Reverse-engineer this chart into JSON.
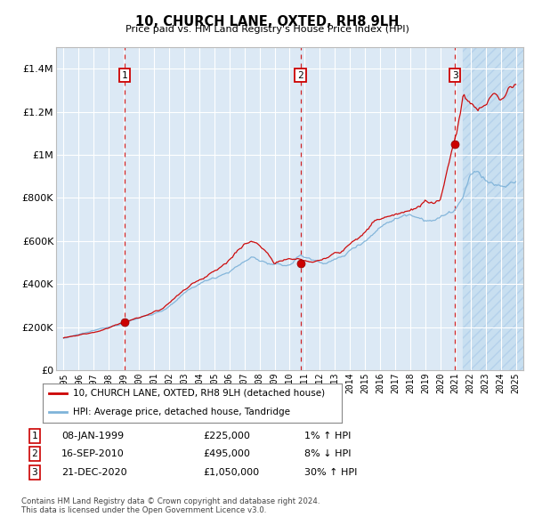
{
  "title": "10, CHURCH LANE, OXTED, RH8 9LH",
  "subtitle": "Price paid vs. HM Land Registry's House Price Index (HPI)",
  "xlim": [
    1994.5,
    2025.5
  ],
  "ylim": [
    0,
    1500000
  ],
  "yticks": [
    0,
    200000,
    400000,
    600000,
    800000,
    1000000,
    1200000,
    1400000
  ],
  "ytick_labels": [
    "£0",
    "£200K",
    "£400K",
    "£600K",
    "£800K",
    "£1M",
    "£1.2M",
    "£1.4M"
  ],
  "xtick_years": [
    1995,
    1996,
    1997,
    1998,
    1999,
    2000,
    2001,
    2002,
    2003,
    2004,
    2005,
    2006,
    2007,
    2008,
    2009,
    2010,
    2011,
    2012,
    2013,
    2014,
    2015,
    2016,
    2017,
    2018,
    2019,
    2020,
    2021,
    2022,
    2023,
    2024,
    2025
  ],
  "sale1_x": 1999.04,
  "sale1_y": 225000,
  "sale1_label": "1",
  "sale1_date": "08-JAN-1999",
  "sale1_price": "£225,000",
  "sale1_hpi": "1% ↑ HPI",
  "sale2_x": 2010.71,
  "sale2_y": 495000,
  "sale2_label": "2",
  "sale2_date": "16-SEP-2010",
  "sale2_price": "£495,000",
  "sale2_hpi": "8% ↓ HPI",
  "sale3_x": 2020.97,
  "sale3_y": 1050000,
  "sale3_label": "3",
  "sale3_date": "21-DEC-2020",
  "sale3_price": "£1,050,000",
  "sale3_hpi": "30% ↑ HPI",
  "legend_label_red": "10, CHURCH LANE, OXTED, RH8 9LH (detached house)",
  "legend_label_blue": "HPI: Average price, detached house, Tandridge",
  "footer1": "Contains HM Land Registry data © Crown copyright and database right 2024.",
  "footer2": "This data is licensed under the Open Government Licence v3.0.",
  "bg_color": "#dce9f5",
  "hatch_color": "#c8dff0",
  "grid_color": "#ffffff",
  "red_line_color": "#cc0000",
  "blue_line_color": "#7fb3d9",
  "dashed_vline_color": "#cc0000",
  "sale_dot_color": "#cc0000",
  "hatch_start": 2021.5
}
